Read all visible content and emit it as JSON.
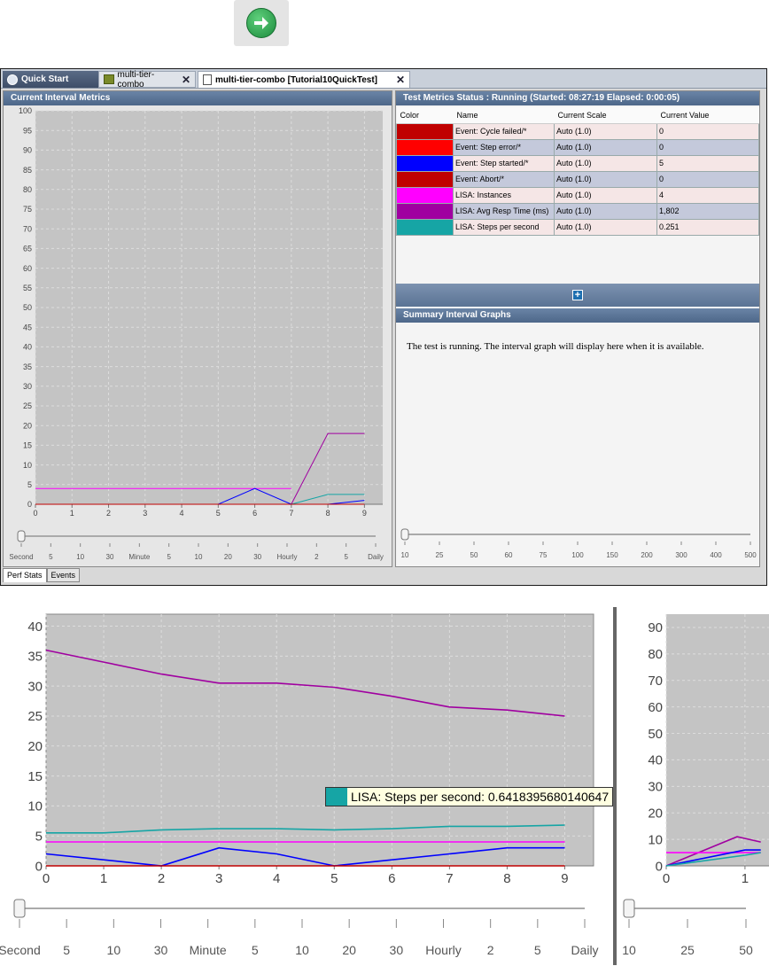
{
  "toolbar": {
    "forward_icon": "arrow-right-circle-icon"
  },
  "tabs": [
    {
      "label": "Quick Start"
    },
    {
      "label": "multi-tier-combo"
    },
    {
      "label": "multi-tier-combo [Tutorial10QuickTest]"
    }
  ],
  "left_panel": {
    "title": "Current Interval Metrics"
  },
  "right_panel": {
    "title": "Test Metrics Status : Running  (Started: 08:27:19 Elapsed: 0:00:05)",
    "columns": [
      "Color",
      "Name",
      "Current Scale",
      "Current Value"
    ],
    "rows": [
      {
        "color": "#c00000",
        "name": "Event: Cycle failed/*",
        "scale": "Auto (1.0)",
        "value": "0"
      },
      {
        "color": "#ff0000",
        "name": "Event: Step error/*",
        "scale": "Auto (1.0)",
        "value": "0"
      },
      {
        "color": "#0000ff",
        "name": "Event: Step started/*",
        "scale": "Auto (1.0)",
        "value": "5"
      },
      {
        "color": "#c00000",
        "name": "Event: Abort/*",
        "scale": "Auto (1.0)",
        "value": "0"
      },
      {
        "color": "#ff00ff",
        "name": "LISA: Instances",
        "scale": "Auto (1.0)",
        "value": "4"
      },
      {
        "color": "#a000a0",
        "name": "LISA: Avg Resp Time (ms)",
        "scale": "Auto (1.0)",
        "value": "1,802"
      },
      {
        "color": "#16a5a5",
        "name": "LISA: Steps per second",
        "scale": "Auto (1.0)",
        "value": "0.251"
      }
    ],
    "summary_title": "Summary Interval Graphs",
    "summary_text": "The test is running. The interval graph will display here when it is available."
  },
  "bottom_tabs": [
    "Perf Stats",
    "Events"
  ],
  "time_slider_labels": [
    "Second",
    "5",
    "10",
    "30",
    "Minute",
    "5",
    "10",
    "20",
    "30",
    "Hourly",
    "2",
    "5",
    "Daily"
  ],
  "count_slider_labels": [
    "10",
    "25",
    "50",
    "60",
    "75",
    "100",
    "150",
    "200",
    "300",
    "400",
    "500"
  ],
  "tooltip": {
    "text": "LISA: Steps per second: 0.6418395680140647",
    "color": "#16a5a5"
  },
  "chart_data": [
    {
      "type": "line",
      "ylim": [
        0,
        100
      ],
      "yticks": [
        0,
        5,
        10,
        15,
        20,
        25,
        30,
        35,
        40,
        45,
        50,
        55,
        60,
        65,
        70,
        75,
        80,
        85,
        90,
        95,
        100
      ],
      "x": [
        0,
        1,
        2,
        3,
        4,
        5,
        6,
        7,
        8,
        9
      ],
      "series": [
        {
          "color": "#ff00ff",
          "points": [
            [
              0,
              4
            ],
            [
              7,
              4
            ]
          ]
        },
        {
          "color": "#a000a0",
          "points": [
            [
              7,
              0
            ],
            [
              8,
              18
            ],
            [
              9,
              18
            ]
          ]
        },
        {
          "color": "#0000ff",
          "points": [
            [
              0,
              0
            ],
            [
              5,
              0
            ],
            [
              6,
              4
            ],
            [
              7,
              0
            ],
            [
              8,
              0
            ],
            [
              9,
              1
            ]
          ]
        },
        {
          "color": "#16a5a5",
          "points": [
            [
              7,
              0
            ],
            [
              8,
              2.5
            ],
            [
              9,
              2.5
            ]
          ]
        },
        {
          "color": "#c00000",
          "points": [
            [
              0,
              0
            ],
            [
              9,
              0
            ]
          ]
        }
      ]
    },
    {
      "type": "line",
      "ylim": [
        0,
        42
      ],
      "yticks": [
        0,
        5,
        10,
        15,
        20,
        25,
        30,
        35,
        40
      ],
      "x": [
        0,
        1,
        2,
        3,
        4,
        5,
        6,
        7,
        8,
        9
      ],
      "series": [
        {
          "color": "#a000a0",
          "points": [
            [
              0,
              36
            ],
            [
              1,
              34
            ],
            [
              2,
              32
            ],
            [
              3,
              30.5
            ],
            [
              4,
              30.5
            ],
            [
              5,
              29.8
            ],
            [
              6,
              28.3
            ],
            [
              7,
              26.5
            ],
            [
              8,
              26
            ],
            [
              9,
              25
            ]
          ]
        },
        {
          "color": "#16a5a5",
          "points": [
            [
              0,
              5.5
            ],
            [
              1,
              5.5
            ],
            [
              2,
              6
            ],
            [
              3,
              6.2
            ],
            [
              4,
              6.2
            ],
            [
              5,
              6
            ],
            [
              6,
              6.2
            ],
            [
              7,
              6.6
            ],
            [
              8,
              6.6
            ],
            [
              9,
              6.8
            ]
          ]
        },
        {
          "color": "#ff00ff",
          "points": [
            [
              0,
              4
            ],
            [
              9,
              4
            ]
          ]
        },
        {
          "color": "#0000ff",
          "points": [
            [
              0,
              2
            ],
            [
              1,
              1
            ],
            [
              2,
              0
            ],
            [
              3,
              3
            ],
            [
              4,
              2
            ],
            [
              5,
              0
            ],
            [
              6,
              1
            ],
            [
              7,
              2
            ],
            [
              8,
              3
            ],
            [
              9,
              3
            ]
          ]
        },
        {
          "color": "#c00000",
          "points": [
            [
              0,
              0
            ],
            [
              9,
              0
            ]
          ]
        }
      ]
    },
    {
      "type": "line",
      "ylim": [
        0,
        95
      ],
      "yticks": [
        0,
        10,
        20,
        30,
        40,
        50,
        60,
        70,
        80,
        90
      ],
      "x": [
        0,
        1
      ],
      "series": [
        {
          "color": "#a000a0",
          "points": [
            [
              0,
              0
            ],
            [
              0.9,
              11
            ],
            [
              1.2,
              9
            ]
          ]
        },
        {
          "color": "#ff00ff",
          "points": [
            [
              0,
              5
            ],
            [
              1.2,
              5
            ]
          ]
        },
        {
          "color": "#0000ff",
          "points": [
            [
              0,
              0
            ],
            [
              1,
              6
            ],
            [
              1.2,
              6
            ]
          ]
        },
        {
          "color": "#16a5a5",
          "points": [
            [
              0,
              0
            ],
            [
              1,
              4
            ],
            [
              1.2,
              5
            ]
          ]
        }
      ]
    }
  ]
}
